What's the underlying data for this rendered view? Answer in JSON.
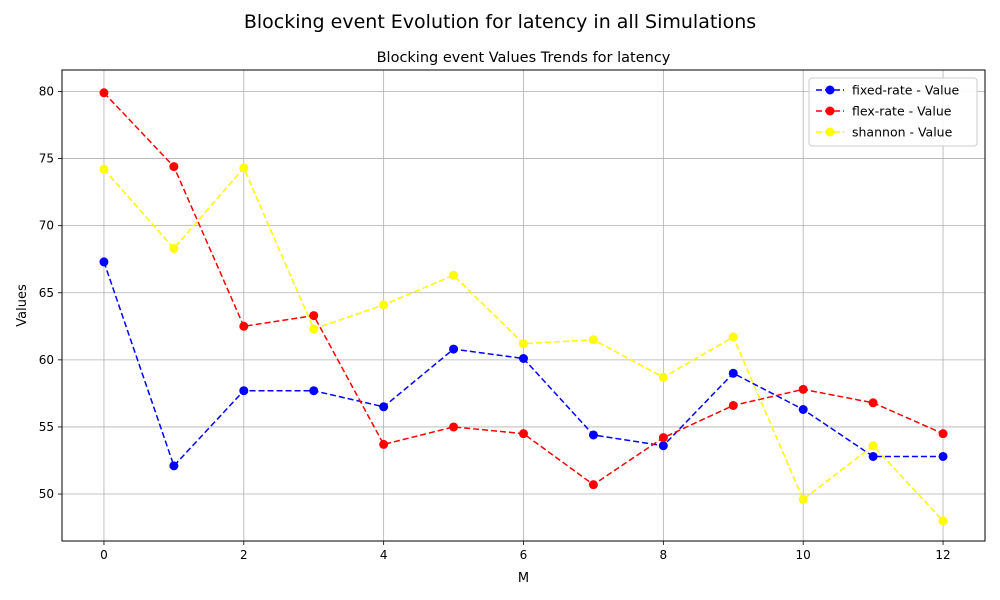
{
  "chart_data": {
    "type": "line",
    "suptitle": "Blocking event Evolution for latency in all Simulations",
    "title": "Blocking event Values Trends for latency",
    "xlabel": "M",
    "ylabel": "Values",
    "xlim": [
      -0.6,
      12.6
    ],
    "ylim": [
      46.5,
      81.6
    ],
    "xticks": [
      0,
      2,
      4,
      6,
      8,
      10,
      12
    ],
    "yticks": [
      50,
      55,
      60,
      65,
      70,
      75,
      80
    ],
    "grid": true,
    "legend_position": "top-right",
    "x": [
      0,
      1,
      2,
      3,
      4,
      5,
      6,
      7,
      8,
      9,
      10,
      11,
      12
    ],
    "series": [
      {
        "name": "fixed-rate - Value",
        "color": "#0000ff",
        "values": [
          67.3,
          52.1,
          57.7,
          57.7,
          56.5,
          60.8,
          60.1,
          54.4,
          53.6,
          59.0,
          56.3,
          52.8,
          52.8
        ]
      },
      {
        "name": "flex-rate - Value",
        "color": "#ff0000",
        "values": [
          79.9,
          74.4,
          62.5,
          63.3,
          53.7,
          55.0,
          54.5,
          50.7,
          54.2,
          56.6,
          57.8,
          56.8,
          54.5
        ]
      },
      {
        "name": "shannon - Value",
        "color": "#ffff00",
        "values": [
          74.2,
          68.3,
          74.3,
          62.3,
          64.1,
          66.3,
          61.2,
          61.5,
          58.7,
          61.7,
          49.6,
          53.6,
          48.0
        ]
      }
    ]
  }
}
